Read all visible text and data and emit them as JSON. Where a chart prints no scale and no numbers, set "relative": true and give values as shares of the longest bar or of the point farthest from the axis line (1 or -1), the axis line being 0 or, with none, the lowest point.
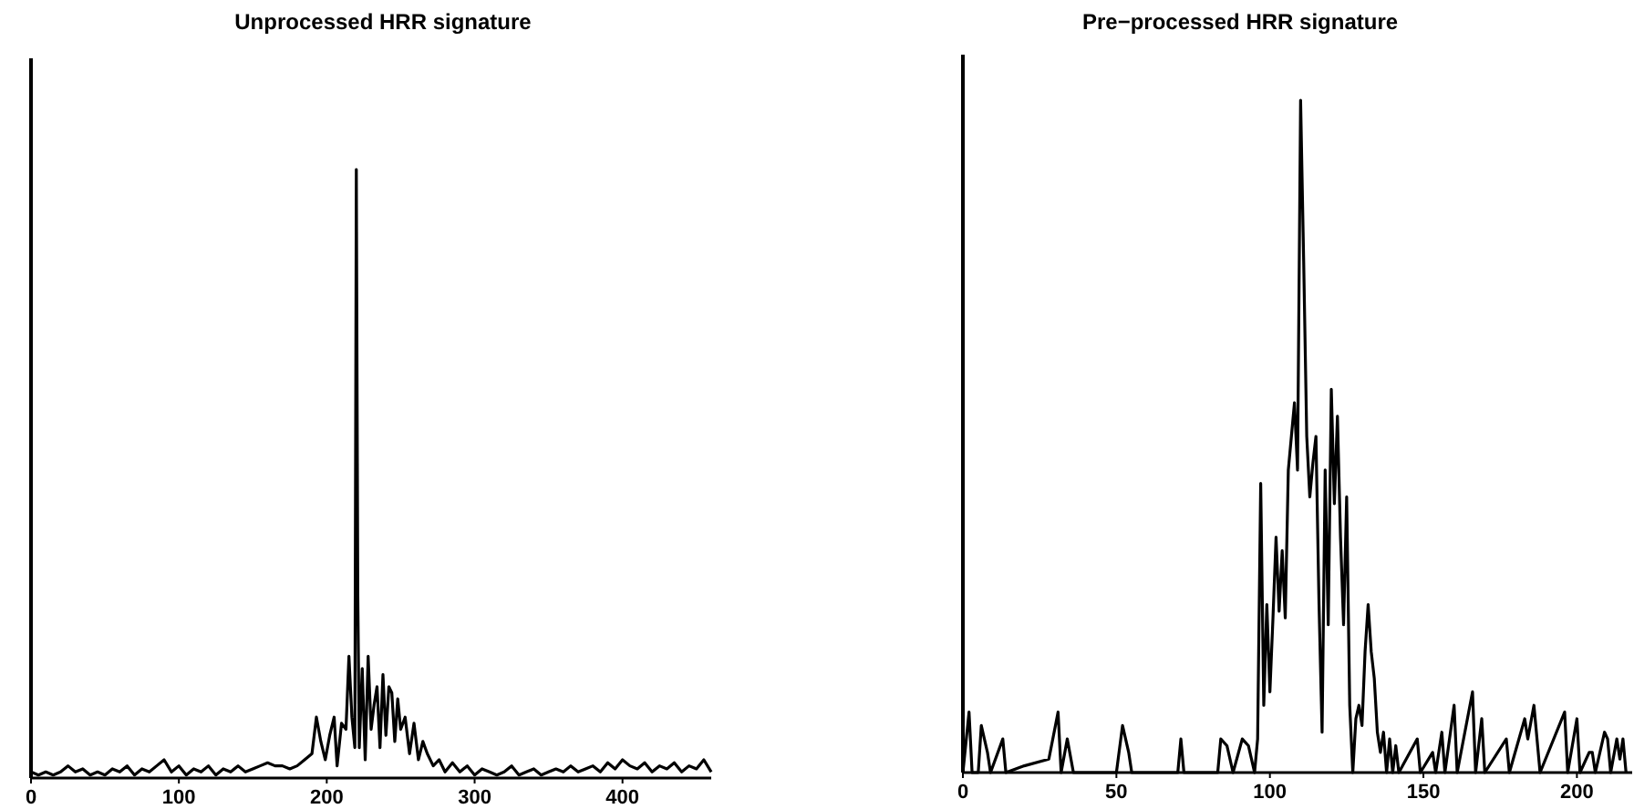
{
  "chart_data": [
    {
      "type": "line",
      "title": "Unprocessed HRR signature",
      "relative": true,
      "xlim": [
        0,
        460
      ],
      "xticks": [
        0,
        100,
        200,
        300,
        400
      ],
      "series": [
        {
          "color": "#000000",
          "x": [
            0,
            5,
            10,
            15,
            20,
            25,
            30,
            35,
            40,
            45,
            50,
            55,
            60,
            65,
            70,
            75,
            80,
            85,
            90,
            95,
            100,
            105,
            110,
            115,
            120,
            125,
            130,
            135,
            140,
            145,
            150,
            155,
            160,
            165,
            170,
            175,
            180,
            185,
            190,
            193,
            196,
            199,
            202,
            205,
            207,
            210,
            213,
            215,
            217,
            219,
            220,
            221,
            222,
            224,
            226,
            228,
            230,
            232,
            234,
            236,
            238,
            240,
            242,
            244,
            246,
            248,
            250,
            253,
            256,
            259,
            262,
            265,
            268,
            272,
            276,
            280,
            285,
            290,
            295,
            300,
            305,
            310,
            315,
            320,
            325,
            330,
            335,
            340,
            345,
            350,
            355,
            360,
            365,
            370,
            375,
            380,
            385,
            390,
            395,
            400,
            405,
            410,
            415,
            420,
            425,
            430,
            435,
            440,
            445,
            450,
            455,
            460
          ],
          "values": [
            0.01,
            0.005,
            0.01,
            0.005,
            0.01,
            0.02,
            0.01,
            0.015,
            0.005,
            0.01,
            0.005,
            0.015,
            0.01,
            0.02,
            0.005,
            0.015,
            0.01,
            0.02,
            0.03,
            0.01,
            0.02,
            0.005,
            0.015,
            0.01,
            0.02,
            0.005,
            0.015,
            0.01,
            0.02,
            0.01,
            0.015,
            0.02,
            0.025,
            0.02,
            0.02,
            0.015,
            0.02,
            0.03,
            0.04,
            0.1,
            0.06,
            0.03,
            0.07,
            0.1,
            0.02,
            0.09,
            0.08,
            0.2,
            0.1,
            0.05,
            1.0,
            0.3,
            0.05,
            0.18,
            0.03,
            0.2,
            0.08,
            0.12,
            0.15,
            0.05,
            0.17,
            0.07,
            0.15,
            0.14,
            0.06,
            0.13,
            0.08,
            0.1,
            0.04,
            0.09,
            0.03,
            0.06,
            0.04,
            0.02,
            0.03,
            0.01,
            0.025,
            0.01,
            0.02,
            0.005,
            0.015,
            0.01,
            0.005,
            0.01,
            0.02,
            0.005,
            0.01,
            0.015,
            0.005,
            0.01,
            0.015,
            0.01,
            0.02,
            0.01,
            0.015,
            0.02,
            0.01,
            0.025,
            0.015,
            0.03,
            0.02,
            0.015,
            0.025,
            0.01,
            0.02,
            0.015,
            0.025,
            0.01,
            0.02,
            0.015,
            0.03,
            0.01
          ]
        }
      ]
    },
    {
      "type": "line",
      "title": "Pre−processed HRR signature",
      "relative": true,
      "xlim": [
        0,
        218
      ],
      "xticks": [
        0,
        50,
        100,
        150,
        200
      ],
      "series": [
        {
          "color": "#000000",
          "x": [
            0,
            2,
            3,
            5,
            6,
            8,
            9,
            13,
            14,
            20,
            28,
            31,
            32,
            34,
            36,
            50,
            52,
            54,
            55,
            70,
            71,
            72,
            83,
            84,
            86,
            88,
            91,
            93,
            95,
            96,
            97,
            98,
            99,
            100,
            101,
            102,
            103,
            104,
            105,
            106,
            107,
            108,
            109,
            110,
            111,
            112,
            113,
            114,
            115,
            116,
            117,
            118,
            119,
            120,
            121,
            122,
            123,
            124,
            125,
            126,
            127,
            128,
            129,
            130,
            131,
            132,
            133,
            134,
            135,
            136,
            137,
            138,
            139,
            140,
            141,
            142,
            148,
            149,
            153,
            154,
            156,
            157,
            160,
            161,
            166,
            167,
            169,
            170,
            177,
            178,
            183,
            184,
            186,
            188,
            196,
            197,
            200,
            201,
            204,
            205,
            206,
            209,
            210,
            211,
            213,
            214,
            215,
            216
          ],
          "values": [
            0,
            0.09,
            0,
            0,
            0.07,
            0.03,
            0,
            0.05,
            0,
            0.01,
            0.02,
            0.09,
            0,
            0.05,
            0,
            0,
            0.07,
            0.03,
            0,
            0,
            0.05,
            0,
            0,
            0.05,
            0.04,
            0,
            0.05,
            0.04,
            0,
            0.05,
            0.43,
            0.1,
            0.25,
            0.12,
            0.23,
            0.35,
            0.24,
            0.33,
            0.23,
            0.45,
            0.5,
            0.55,
            0.45,
            1.0,
            0.76,
            0.5,
            0.41,
            0.46,
            0.5,
            0.25,
            0.06,
            0.45,
            0.22,
            0.57,
            0.4,
            0.53,
            0.35,
            0.22,
            0.41,
            0.1,
            0,
            0.08,
            0.1,
            0.07,
            0.18,
            0.25,
            0.18,
            0.14,
            0.06,
            0.03,
            0.06,
            0,
            0.05,
            0,
            0.04,
            0,
            0.05,
            0,
            0.03,
            0,
            0.06,
            0,
            0.1,
            0,
            0.12,
            0,
            0.08,
            0,
            0.05,
            0,
            0.08,
            0.05,
            0.1,
            0,
            0.09,
            0,
            0.08,
            0,
            0.03,
            0.03,
            0,
            0.06,
            0.05,
            0,
            0.05,
            0.02,
            0.05,
            0
          ]
        }
      ]
    }
  ]
}
